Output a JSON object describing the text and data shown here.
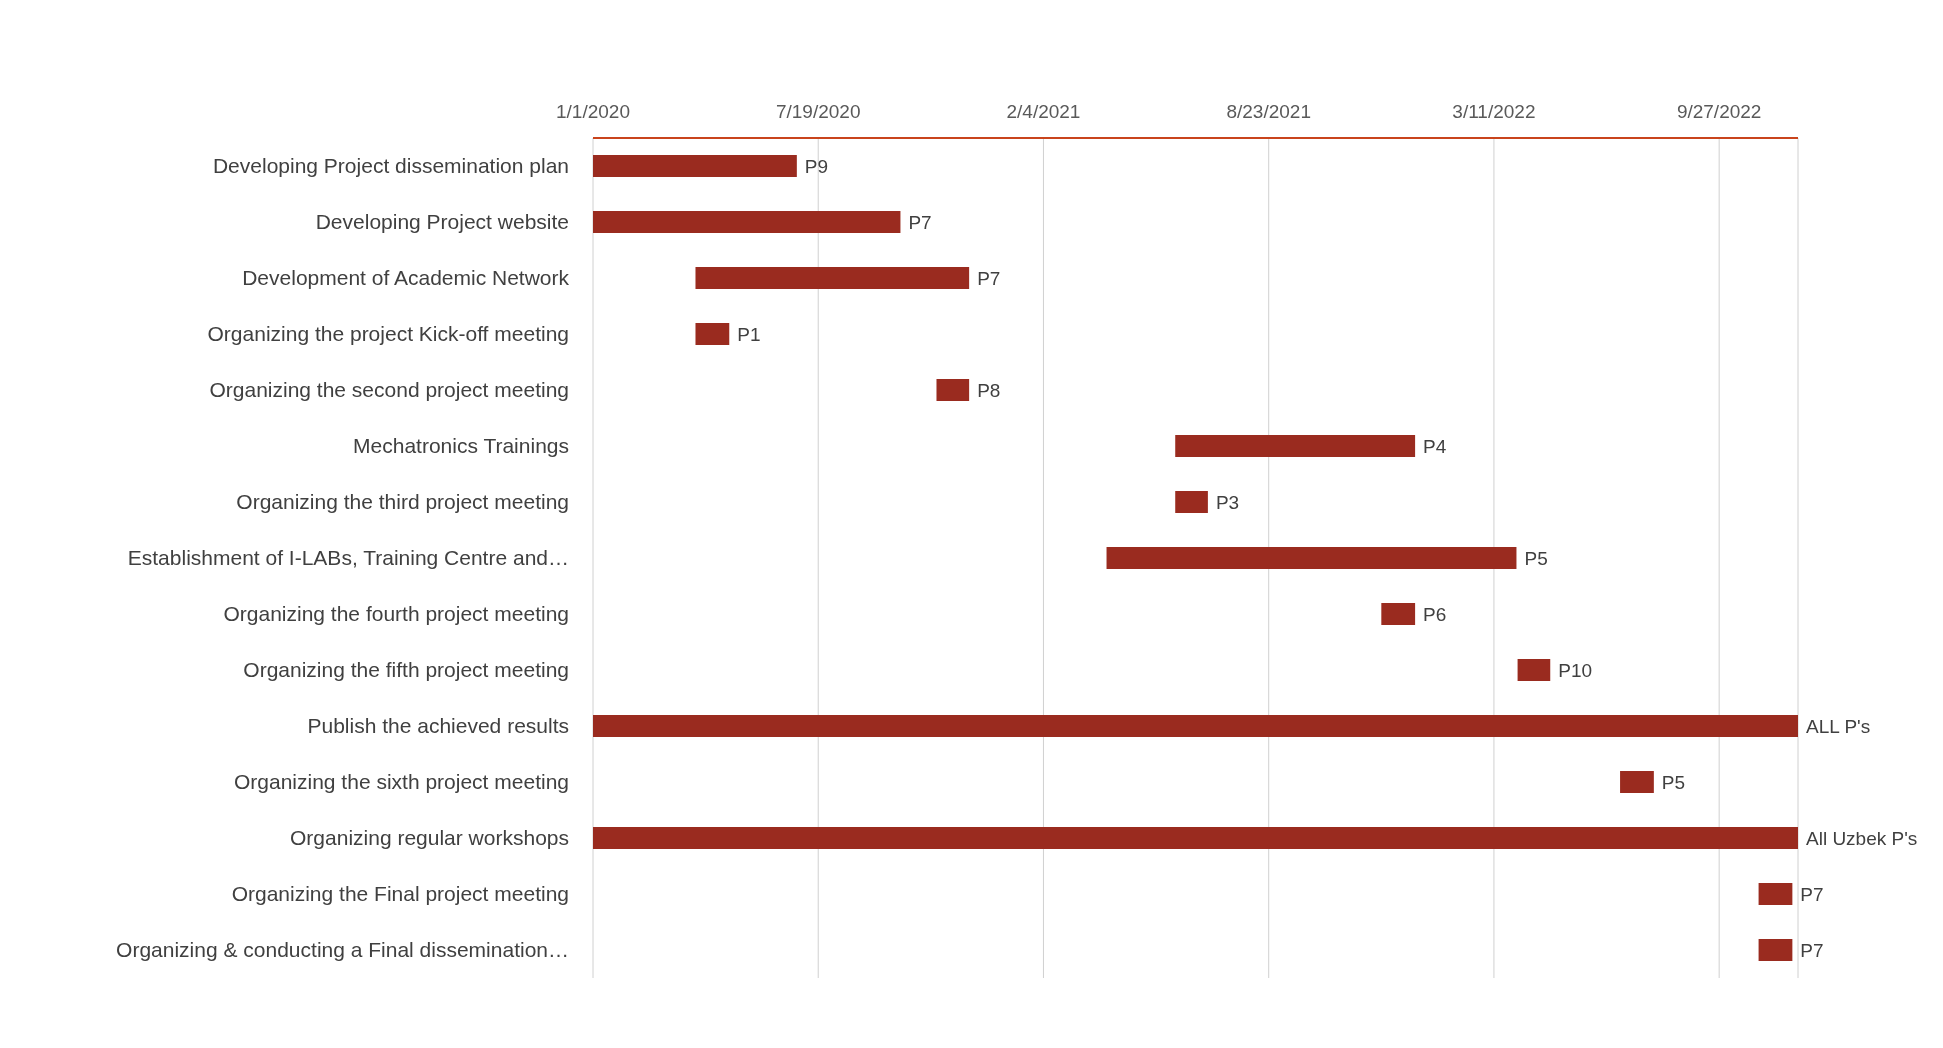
{
  "chart_data": {
    "type": "bar",
    "orientation": "horizontal",
    "categories": [
      "Developing Project dissemination plan",
      "Developing Project website",
      "Development of Academic Network",
      "Organizing the project Kick-off meeting",
      "Organizing the second project meeting",
      "Mechatronics Trainings",
      "Organizing the third project meeting",
      "Establishment of I-LABs, Training Centre and…",
      "Organizing the fourth project meeting",
      "Organizing the fifth project meeting",
      "Publish the achieved results",
      "Organizing the sixth project meeting",
      "Organizing regular workshops",
      "Organizing the Final project meeting",
      "Organizing & conducting a Final dissemination…"
    ],
    "base": [
      18262,
      18262,
      18353,
      18353,
      18567,
      18779,
      18779,
      18718,
      18962,
      19083,
      18262,
      19174,
      18262,
      19297,
      19297
    ],
    "values": [
      181,
      273,
      243,
      30,
      29,
      213,
      29,
      364,
      30,
      29,
      1070,
      30,
      1070,
      30,
      30
    ],
    "value_labels": [
      "P9",
      "P7",
      "P7",
      "P1",
      "P8",
      "P4",
      "P3",
      "P5",
      "P6",
      "P10",
      "ALL P's",
      "P5",
      "All Uzbek P's",
      "P7",
      "P7"
    ],
    "color": "#9a2b1f",
    "xlim": [
      "2020-01-01",
      "2022-12-06"
    ],
    "xticks": [
      {
        "value": "2020-01-01",
        "label": "1/1/2020"
      },
      {
        "value": "2020-07-19",
        "label": "7/19/2020"
      },
      {
        "value": "2021-02-04",
        "label": "2/4/2021"
      },
      {
        "value": "2021-08-23",
        "label": "8/23/2021"
      },
      {
        "value": "2022-03-11",
        "label": "3/11/2022"
      },
      {
        "value": "2022-09-27",
        "label": "9/27/2022"
      }
    ],
    "grid": "x",
    "legend": false
  }
}
